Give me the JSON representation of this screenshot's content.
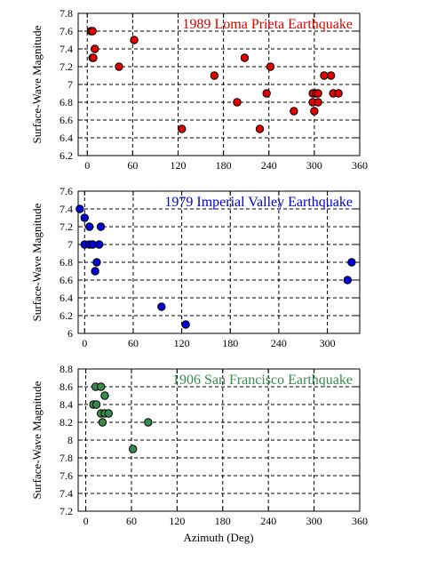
{
  "x_axis_label": "Azimuth (Deg)",
  "chart_data": [
    {
      "type": "scatter",
      "title": "1989 Loma Prieta Earthquake",
      "ylabel": "Surface-Wave Magnitude",
      "xlim": [
        -12,
        360
      ],
      "ylim": [
        6.2,
        7.8
      ],
      "xticks": [
        "0",
        "60",
        "120",
        "180",
        "240",
        "300",
        "360"
      ],
      "yticks": [
        "6.2",
        "6.4",
        "6.6",
        "6.8",
        "7",
        "7.2",
        "7.4",
        "7.6",
        "7.8"
      ],
      "grid": true,
      "color": "#e00000",
      "points": [
        [
          5,
          7.6
        ],
        [
          7,
          7.6
        ],
        [
          10,
          7.4
        ],
        [
          7,
          7.3
        ],
        [
          8,
          7.3
        ],
        [
          42,
          7.2
        ],
        [
          62,
          7.5
        ],
        [
          125,
          6.5
        ],
        [
          168,
          7.1
        ],
        [
          198,
          6.8
        ],
        [
          208,
          7.3
        ],
        [
          228,
          6.5
        ],
        [
          237,
          6.9
        ],
        [
          242,
          7.2
        ],
        [
          273,
          6.7
        ],
        [
          298,
          6.9
        ],
        [
          302,
          6.9
        ],
        [
          298,
          6.8
        ],
        [
          305,
          6.8
        ],
        [
          305,
          6.9
        ],
        [
          300,
          6.7
        ],
        [
          313,
          7.1
        ],
        [
          322,
          7.1
        ],
        [
          325,
          6.9
        ],
        [
          332,
          6.9
        ]
      ]
    },
    {
      "type": "scatter",
      "title": "1979 Imperial Valley Earthquake",
      "ylabel": "Surface-Wave Magnitude",
      "xlim": [
        -8,
        340
      ],
      "ylim": [
        6.0,
        7.6
      ],
      "xticks": [
        "0",
        "60",
        "120",
        "180",
        "240",
        "300"
      ],
      "yticks": [
        "6",
        "6.2",
        "6.4",
        "6.6",
        "6.8",
        "7",
        "7.2",
        "7.4",
        "7.6"
      ],
      "grid": true,
      "color": "#0000d8",
      "points": [
        [
          -6,
          7.4
        ],
        [
          0,
          7.3
        ],
        [
          6,
          7.2
        ],
        [
          20,
          7.2
        ],
        [
          0,
          7.0
        ],
        [
          6,
          7.0
        ],
        [
          10,
          7.0
        ],
        [
          18,
          7.0
        ],
        [
          15,
          6.8
        ],
        [
          13,
          6.7
        ],
        [
          95,
          6.3
        ],
        [
          125,
          6.1
        ],
        [
          325,
          6.6
        ],
        [
          330,
          6.8
        ]
      ]
    },
    {
      "type": "scatter",
      "title": "1906 San Francisco Earthquake",
      "ylabel": "Surface-Wave Magnitude",
      "xlim": [
        -10,
        360
      ],
      "ylim": [
        7.2,
        8.8
      ],
      "xticks": [
        "0",
        "60",
        "120",
        "180",
        "240",
        "300",
        "360"
      ],
      "yticks": [
        "7.2",
        "7.4",
        "7.6",
        "7.8",
        "8",
        "8.2",
        "8.4",
        "8.6",
        "8.8"
      ],
      "grid": true,
      "color": "#3a8a4e",
      "points": [
        [
          13,
          8.6
        ],
        [
          20,
          8.6
        ],
        [
          10,
          8.4
        ],
        [
          14,
          8.4
        ],
        [
          25,
          8.5
        ],
        [
          20,
          8.3
        ],
        [
          25,
          8.3
        ],
        [
          30,
          8.3
        ],
        [
          22,
          8.2
        ],
        [
          82,
          8.2
        ],
        [
          62,
          7.9
        ]
      ]
    }
  ]
}
